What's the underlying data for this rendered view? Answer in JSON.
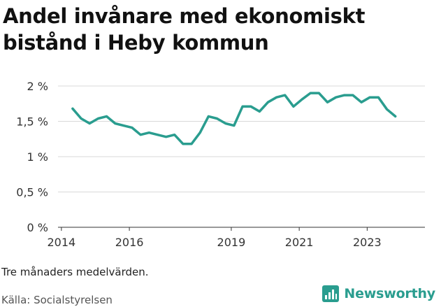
{
  "title": "Andel invånare med ekonomiskt bistånd i Heby kommun",
  "note": "Tre månaders medelvärden.",
  "source": "Källa: Socialstyrelsen",
  "brand": {
    "name": "Newsworthy",
    "icon": "bar-chart-logo-icon",
    "color": "#2a9d8f"
  },
  "colors": {
    "line": "#2a9d8f",
    "grid": "#d9d9d9",
    "axis": "#333333"
  },
  "chart_data": {
    "type": "line",
    "title": "Andel invånare med ekonomiskt bistånd i Heby kommun",
    "xlabel": "",
    "ylabel": "",
    "ylim": [
      0,
      2
    ],
    "xlim": [
      2013.9,
      2024.7
    ],
    "y_ticks": [
      0,
      0.5,
      1,
      1.5,
      2
    ],
    "y_tick_labels": [
      "0 %",
      "0,5 %",
      "1 %",
      "1,5 %",
      "2 %"
    ],
    "x_ticks": [
      2014,
      2016,
      2019,
      2021,
      2023
    ],
    "x_tick_labels": [
      "2014",
      "2016",
      "2019",
      "2021",
      "2023"
    ],
    "grid": true,
    "series": [
      {
        "x": [
          2014.33,
          2014.58,
          2014.83,
          2015.08,
          2015.33,
          2015.58,
          2015.83,
          2016.08,
          2016.33,
          2016.58,
          2016.83,
          2017.08,
          2017.33,
          2017.58,
          2017.83,
          2018.08,
          2018.33,
          2018.58,
          2018.83,
          2019.08,
          2019.33,
          2019.58,
          2019.83,
          2020.08,
          2020.33,
          2020.58,
          2020.83,
          2021.08,
          2021.33,
          2021.58,
          2021.83,
          2022.08,
          2022.33,
          2022.58,
          2022.83,
          2023.08,
          2023.33,
          2023.58,
          2023.83
        ],
        "values": [
          1.68,
          1.54,
          1.47,
          1.54,
          1.57,
          1.47,
          1.44,
          1.41,
          1.31,
          1.34,
          1.31,
          1.28,
          1.31,
          1.18,
          1.18,
          1.34,
          1.57,
          1.54,
          1.47,
          1.44,
          1.71,
          1.71,
          1.64,
          1.77,
          1.84,
          1.87,
          1.71,
          1.81,
          1.9,
          1.9,
          1.77,
          1.84,
          1.87,
          1.87,
          1.77,
          1.84,
          1.84,
          1.67,
          1.57
        ]
      }
    ]
  }
}
